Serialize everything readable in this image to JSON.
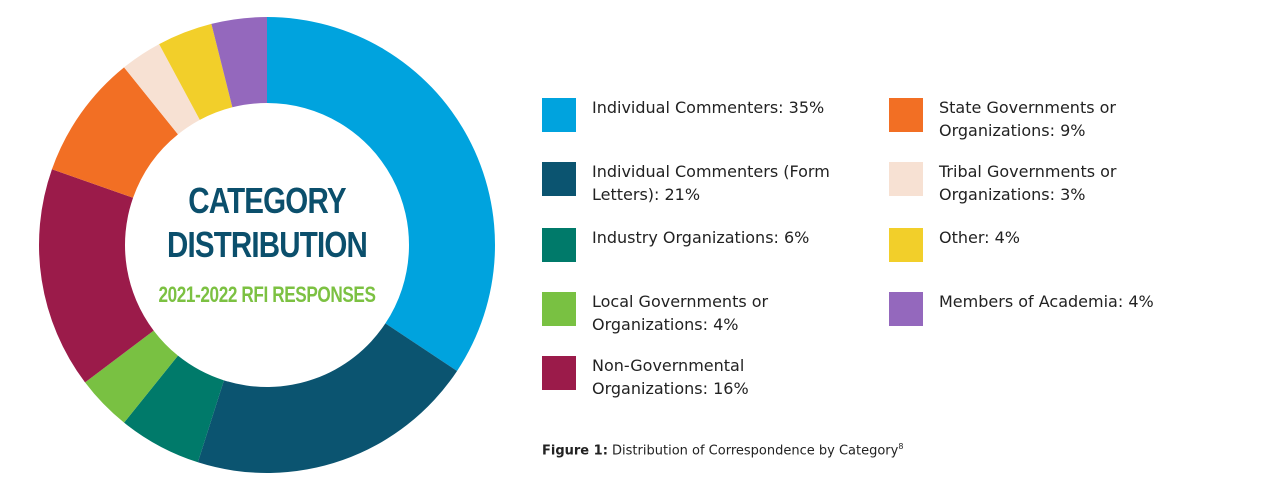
{
  "chart_data": {
    "type": "pie",
    "title": "Category Distribution",
    "subtitle": "2021-2022 RFI Responses",
    "title_lines": [
      "CATEGORY",
      "DISTRIBUTION"
    ],
    "subtitle_display": "2021-2022 RFI RESPONSES",
    "categories": [
      "Individual Commenters",
      "Individual Commenters (Form Letters)",
      "Industry Organizations",
      "Local Governments or Organizations",
      "Non-Governmental Organizations",
      "State Governments or Organizations",
      "Tribal Governments or Organizations",
      "Other",
      "Members of Academia"
    ],
    "values": [
      35,
      21,
      6,
      4,
      16,
      9,
      3,
      4,
      4
    ],
    "unit": "%",
    "colors": [
      "#00a3de",
      "#0b5470",
      "#007a6a",
      "#79c142",
      "#9b1b4a",
      "#f26f24",
      "#f7e1d3",
      "#f2cf2a",
      "#9468bd"
    ],
    "legend_labels": [
      "Individual Commenters: 35%",
      "Individual Commenters (Form Letters): 21%",
      "Industry Organizations: 6%",
      "Local Governments or Organizations: 4%",
      "Non-Governmental Organizations: 16%",
      "State Governments or Organizations: 9%",
      "Tribal Governments or Organizations: 3%",
      "Other: 4%",
      "Members of Academia: 4%"
    ],
    "legend_placement": "right"
  },
  "caption": {
    "label": "Figure 1:",
    "text": " Distribution of Correspondence by Category",
    "footnote": "8"
  }
}
